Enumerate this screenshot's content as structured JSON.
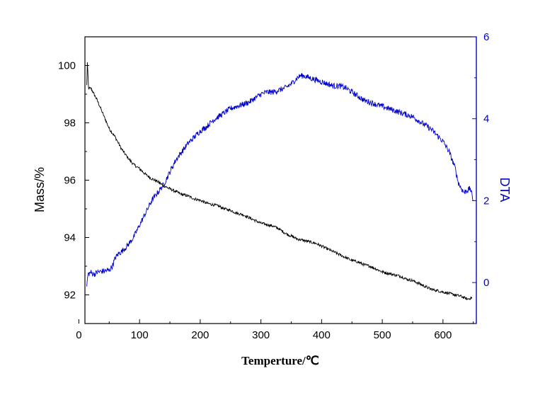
{
  "chart_data": {
    "type": "line",
    "title": "",
    "xlabel": "Temperture/℃",
    "ylabel_left": "Mass/%",
    "ylabel_right": "DTA",
    "xlim": [
      10,
      655
    ],
    "ylim_left": [
      91,
      101
    ],
    "ylim_right": [
      -1,
      6
    ],
    "x_ticks": [
      0,
      100,
      200,
      300,
      400,
      500,
      600
    ],
    "y_left_ticks": [
      92,
      94,
      96,
      98,
      100
    ],
    "y_right_ticks": [
      0,
      2,
      4,
      6
    ],
    "grid": false,
    "legend": "none",
    "colors": {
      "mass": "#000000",
      "dta": "#0000cc"
    },
    "series": [
      {
        "axis": "left",
        "x": [
          13,
          14,
          16,
          20,
          25,
          30,
          40,
          50,
          60,
          70,
          80,
          90,
          100,
          110,
          120,
          130,
          140,
          150,
          160,
          170,
          180,
          190,
          200,
          210,
          220,
          230,
          240,
          250,
          260,
          270,
          280,
          290,
          300,
          310,
          320,
          330,
          340,
          350,
          360,
          370,
          380,
          390,
          400,
          410,
          420,
          430,
          440,
          450,
          460,
          470,
          480,
          490,
          500,
          510,
          520,
          530,
          540,
          550,
          560,
          570,
          580,
          590,
          600,
          610,
          620,
          630,
          640,
          648
        ],
        "values": [
          99.3,
          100.1,
          99.2,
          99.2,
          99.0,
          98.8,
          98.3,
          97.8,
          97.5,
          97.1,
          96.8,
          96.55,
          96.4,
          96.2,
          96.05,
          95.95,
          95.8,
          95.7,
          95.6,
          95.5,
          95.45,
          95.35,
          95.3,
          95.2,
          95.15,
          95.1,
          95.0,
          94.95,
          94.85,
          94.8,
          94.7,
          94.6,
          94.5,
          94.45,
          94.4,
          94.3,
          94.15,
          94.05,
          93.95,
          93.9,
          93.85,
          93.8,
          93.7,
          93.6,
          93.5,
          93.4,
          93.3,
          93.2,
          93.15,
          93.05,
          93.0,
          92.9,
          92.8,
          92.75,
          92.7,
          92.65,
          92.55,
          92.5,
          92.4,
          92.3,
          92.2,
          92.15,
          92.1,
          92.05,
          92.0,
          91.95,
          91.85,
          91.9
        ]
      },
      {
        "axis": "right",
        "x": [
          13,
          15,
          20,
          25,
          30,
          40,
          50,
          55,
          60,
          65,
          70,
          80,
          90,
          100,
          110,
          120,
          130,
          140,
          150,
          160,
          170,
          180,
          190,
          200,
          210,
          220,
          230,
          240,
          250,
          260,
          270,
          280,
          290,
          300,
          310,
          320,
          330,
          340,
          350,
          360,
          365,
          370,
          380,
          390,
          400,
          410,
          420,
          430,
          440,
          450,
          460,
          470,
          480,
          490,
          500,
          510,
          520,
          530,
          540,
          550,
          560,
          570,
          580,
          590,
          600,
          610,
          615,
          620,
          625,
          630,
          635,
          640,
          645,
          650
        ],
        "values": [
          -0.1,
          0.2,
          0.25,
          0.2,
          0.25,
          0.28,
          0.3,
          0.4,
          0.6,
          0.7,
          0.75,
          0.9,
          1.1,
          1.4,
          1.7,
          2.0,
          2.2,
          2.4,
          2.7,
          3.0,
          3.2,
          3.4,
          3.55,
          3.7,
          3.8,
          3.95,
          4.05,
          4.15,
          4.25,
          4.3,
          4.35,
          4.4,
          4.5,
          4.6,
          4.65,
          4.65,
          4.7,
          4.75,
          4.85,
          5.0,
          5.05,
          5.05,
          5.0,
          4.95,
          4.9,
          4.85,
          4.8,
          4.8,
          4.75,
          4.65,
          4.55,
          4.45,
          4.4,
          4.35,
          4.3,
          4.25,
          4.2,
          4.15,
          4.1,
          4.05,
          3.95,
          3.85,
          3.75,
          3.6,
          3.45,
          3.2,
          3.0,
          2.8,
          2.45,
          2.3,
          2.2,
          2.25,
          2.3,
          2.0
        ]
      }
    ]
  }
}
